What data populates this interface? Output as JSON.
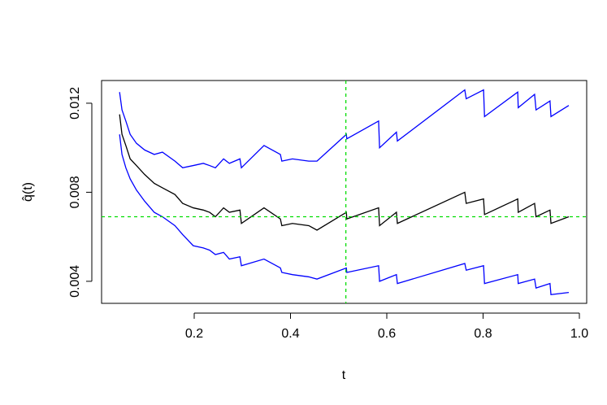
{
  "chart_data": {
    "type": "line",
    "xlabel": "t",
    "ylabel": "q̂(t)",
    "x": [
      0.045,
      0.05,
      0.058,
      0.067,
      0.08,
      0.097,
      0.117,
      0.134,
      0.16,
      0.176,
      0.198,
      0.219,
      0.232,
      0.244,
      0.261,
      0.273,
      0.295,
      0.298,
      0.345,
      0.379,
      0.382,
      0.404,
      0.438,
      0.455,
      0.516,
      0.517,
      0.583,
      0.585,
      0.62,
      0.622,
      0.762,
      0.765,
      0.801,
      0.803,
      0.872,
      0.873,
      0.907,
      0.91,
      0.939,
      0.941,
      0.978
    ],
    "series": [
      {
        "color": "#0000ff",
        "values": [
          0.0125,
          0.0117,
          0.0112,
          0.0106,
          0.0102,
          0.0099,
          0.0097,
          0.0098,
          0.0094,
          0.0091,
          0.0092,
          0.0093,
          0.0092,
          0.0091,
          0.0095,
          0.0093,
          0.0095,
          0.0091,
          0.0101,
          0.0097,
          0.0094,
          0.0095,
          0.0094,
          0.0094,
          0.0106,
          0.0104,
          0.0112,
          0.01,
          0.0107,
          0.0103,
          0.0126,
          0.0122,
          0.0126,
          0.0114,
          0.0125,
          0.0118,
          0.0124,
          0.0117,
          0.0121,
          0.0114,
          0.0119
        ]
      },
      {
        "color": "#0000ff",
        "values": [
          0.0106,
          0.0097,
          0.0091,
          0.0086,
          0.0081,
          0.0076,
          0.0071,
          0.0069,
          0.0065,
          0.0061,
          0.0056,
          0.0055,
          0.0054,
          0.0052,
          0.0053,
          0.005,
          0.0051,
          0.0047,
          0.005,
          0.0046,
          0.0044,
          0.0043,
          0.0042,
          0.0041,
          0.0046,
          0.0044,
          0.0047,
          0.004,
          0.0043,
          0.0039,
          0.0048,
          0.0045,
          0.0047,
          0.0039,
          0.0043,
          0.0039,
          0.0041,
          0.0037,
          0.0039,
          0.0034,
          0.0035
        ]
      },
      {
        "color": "#000000",
        "values": [
          0.0115,
          0.0106,
          0.0101,
          0.0095,
          0.0092,
          0.0088,
          0.0084,
          0.0082,
          0.0079,
          0.0075,
          0.0073,
          0.0072,
          0.0071,
          0.0069,
          0.0073,
          0.0071,
          0.0072,
          0.0066,
          0.0073,
          0.0068,
          0.0065,
          0.0066,
          0.0065,
          0.0063,
          0.0071,
          0.0068,
          0.0073,
          0.0065,
          0.0071,
          0.0066,
          0.008,
          0.0075,
          0.0077,
          0.007,
          0.0077,
          0.0071,
          0.0075,
          0.0069,
          0.0072,
          0.0066,
          0.0069
        ]
      }
    ],
    "xlim": [
      0.0076,
      1.0152
    ],
    "ylim": [
      0.00301,
      0.01302
    ],
    "xticks": [
      0.2,
      0.4,
      0.6,
      0.8,
      {
        "value": 1,
        "label": "1.0"
      }
    ],
    "yticks": [
      0.004,
      0.008,
      0.012
    ],
    "vline": 0.515,
    "hline": 0.0069,
    "ref_color": "#00dd00"
  }
}
